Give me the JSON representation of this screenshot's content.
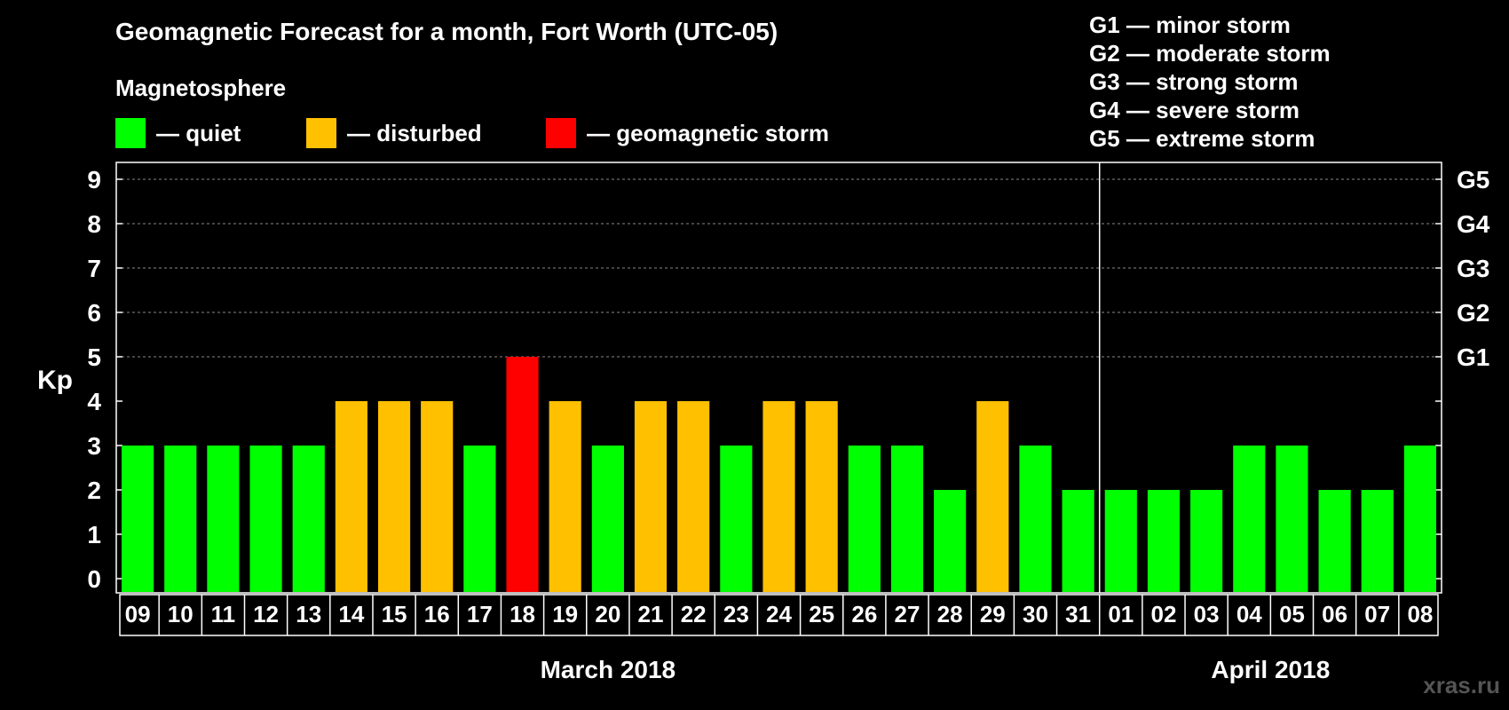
{
  "title": "Geomagnetic Forecast for a month, Fort Worth (UTC-05)",
  "subtitle": "Magnetosphere",
  "legend": [
    {
      "label": "— quiet",
      "color": "#00ff00"
    },
    {
      "label": "— disturbed",
      "color": "#ffc000"
    },
    {
      "label": "— geomagnetic storm",
      "color": "#ff0000"
    }
  ],
  "storm_scale": [
    "G1 — minor storm",
    "G2 — moderate storm",
    "G3 — strong storm",
    "G4 — severe storm",
    "G5 — extreme storm"
  ],
  "watermark": "xras.ru",
  "chart_data": {
    "type": "bar",
    "title": "Geomagnetic Forecast for a month, Fort Worth (UTC-05)",
    "ylabel": "Kp",
    "ylim": [
      0,
      9
    ],
    "yticks": [
      "0",
      "1",
      "2",
      "3",
      "4",
      "5",
      "6",
      "7",
      "8",
      "9"
    ],
    "right_axis_labels": [
      {
        "kp": 5,
        "label": "G1"
      },
      {
        "kp": 6,
        "label": "G2"
      },
      {
        "kp": 7,
        "label": "G3"
      },
      {
        "kp": 8,
        "label": "G4"
      },
      {
        "kp": 9,
        "label": "G5"
      }
    ],
    "categories": [
      "09",
      "10",
      "11",
      "12",
      "13",
      "14",
      "15",
      "16",
      "17",
      "18",
      "19",
      "20",
      "21",
      "22",
      "23",
      "24",
      "25",
      "26",
      "27",
      "28",
      "29",
      "30",
      "31",
      "01",
      "02",
      "03",
      "04",
      "05",
      "06",
      "07",
      "08"
    ],
    "values": [
      3,
      3,
      3,
      3,
      3,
      4,
      4,
      4,
      3,
      5,
      4,
      3,
      4,
      4,
      3,
      4,
      4,
      3,
      3,
      2,
      4,
      3,
      2,
      2,
      2,
      2,
      3,
      3,
      2,
      2,
      3
    ],
    "colors": {
      "quiet": "#00ff00",
      "disturbed": "#ffc000",
      "storm": "#ff0000"
    },
    "months": [
      {
        "label": "March 2018",
        "start": 0,
        "end": 22
      },
      {
        "label": "April 2018",
        "start": 23,
        "end": 30
      }
    ],
    "month_divider_after_index": 22
  }
}
